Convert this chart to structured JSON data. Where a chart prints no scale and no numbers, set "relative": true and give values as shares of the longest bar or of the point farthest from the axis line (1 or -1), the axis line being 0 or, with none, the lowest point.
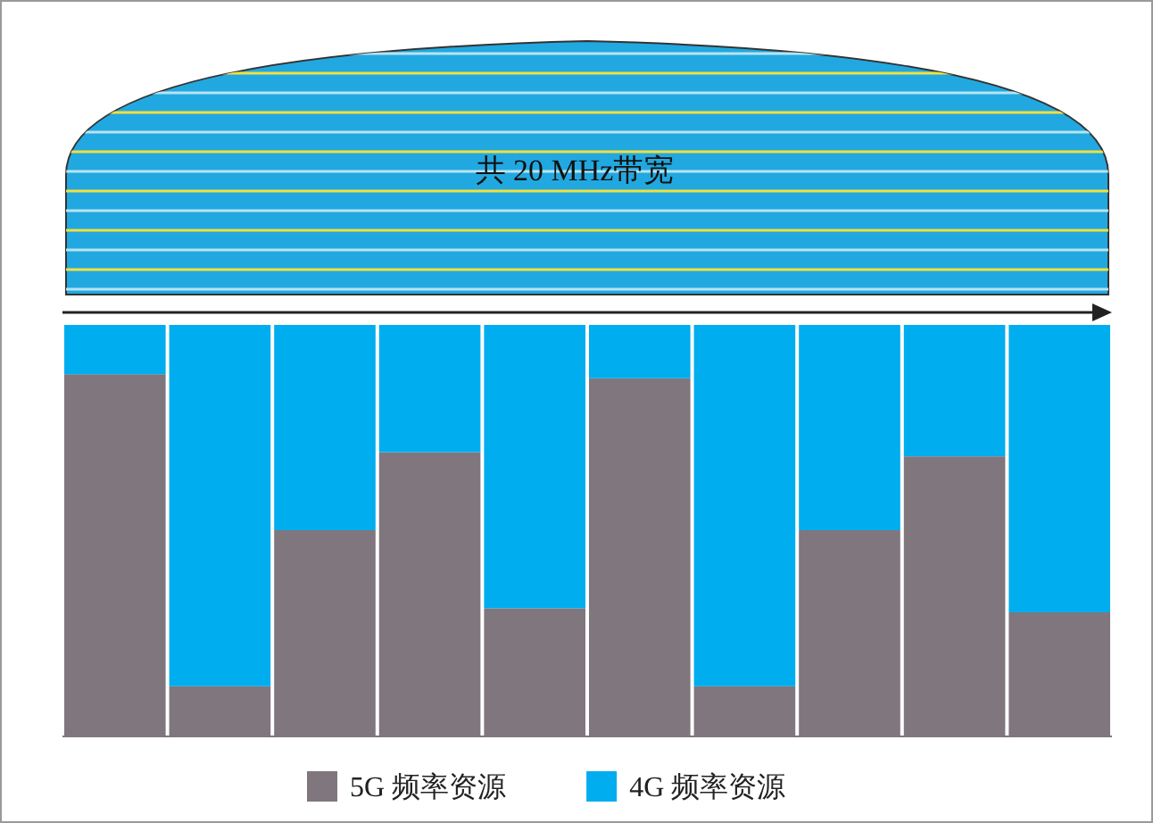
{
  "chart_data": {
    "type": "bar",
    "stacked": true,
    "relative": true,
    "categories": [
      null,
      null,
      null,
      null,
      null,
      null,
      null,
      null,
      null,
      null
    ],
    "series": [
      {
        "name": "5G 频率资源",
        "color": "#80767d",
        "values": [
          0.88,
          0.12,
          0.5,
          0.69,
          0.31,
          0.87,
          0.12,
          0.5,
          0.68,
          0.3
        ]
      },
      {
        "name": "4G 频率资源",
        "color": "#00adee",
        "values": [
          0.12,
          0.88,
          0.5,
          0.31,
          0.69,
          0.13,
          0.88,
          0.5,
          0.32,
          0.7
        ]
      }
    ],
    "annotations": [
      "共 20 MHz带宽"
    ],
    "legend": "bottom"
  }
}
